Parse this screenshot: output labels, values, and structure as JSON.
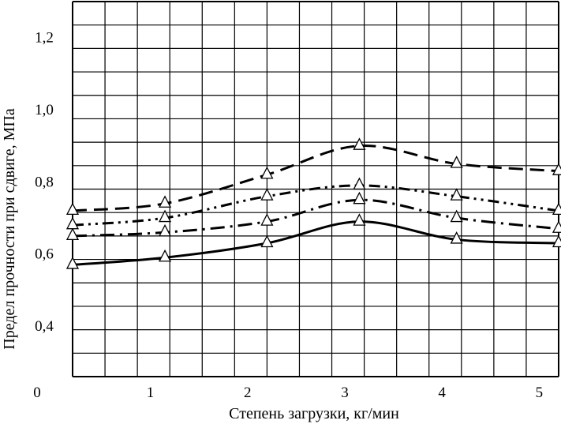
{
  "chart_data": {
    "type": "line",
    "title": "",
    "xlabel": "Степень загрузки, кг/мин",
    "ylabel": "Предел прочности при сдвиге, МПа",
    "xlim": [
      0.2,
      5.2
    ],
    "ylim": [
      0.26,
      1.3
    ],
    "x_ticks": [
      1,
      2,
      3,
      4,
      5
    ],
    "x_tick_labels": [
      "1",
      "2",
      "3",
      "4",
      "5"
    ],
    "y_ticks": [
      0.4,
      0.6,
      0.8,
      1.0,
      1.2
    ],
    "y_tick_labels": [
      "0,4",
      "0,6",
      "0,8",
      "1,0",
      "1,2"
    ],
    "origin_label": "0",
    "grid": true,
    "legend": "none",
    "marker": "open-triangle",
    "series": [
      {
        "style": "dashed",
        "x": [
          0.2,
          1.15,
          2.2,
          3.15,
          4.15,
          5.2
        ],
        "y": [
          0.72,
          0.74,
          0.82,
          0.9,
          0.85,
          0.83
        ]
      },
      {
        "style": "dash-dot-dot",
        "x": [
          0.2,
          1.15,
          2.2,
          3.15,
          4.15,
          5.2
        ],
        "y": [
          0.68,
          0.7,
          0.76,
          0.79,
          0.76,
          0.72
        ]
      },
      {
        "style": "dash-dot",
        "x": [
          0.2,
          1.15,
          2.2,
          3.15,
          4.15,
          5.2
        ],
        "y": [
          0.65,
          0.66,
          0.69,
          0.75,
          0.7,
          0.67
        ]
      },
      {
        "style": "solid",
        "x": [
          0.2,
          1.15,
          2.2,
          3.15,
          4.15,
          5.2
        ],
        "y": [
          0.57,
          0.59,
          0.63,
          0.69,
          0.64,
          0.63
        ]
      }
    ]
  }
}
